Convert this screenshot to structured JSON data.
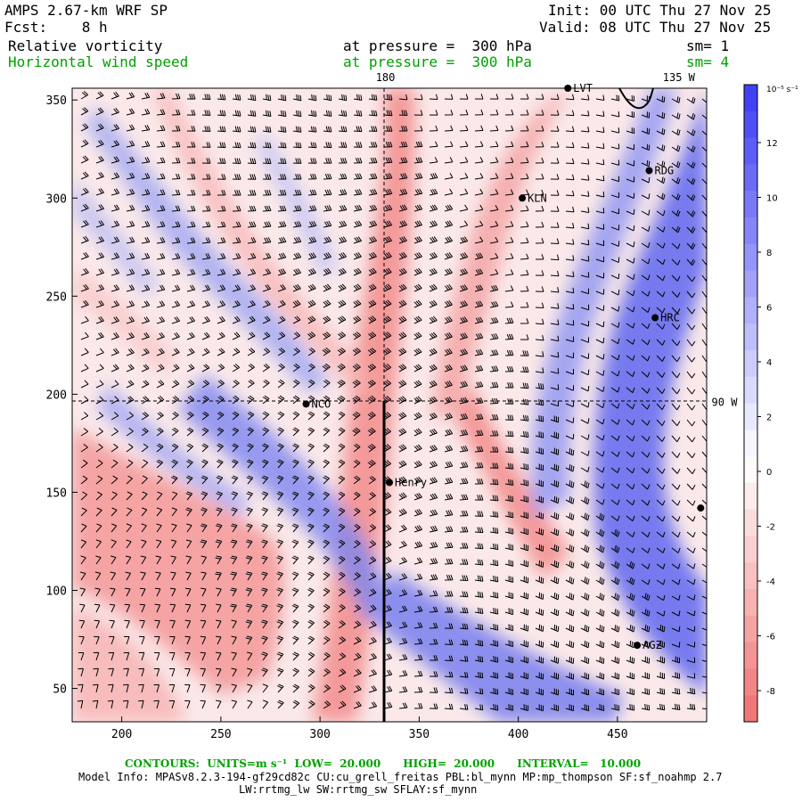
{
  "header": {
    "model": "AMPS 2.67-km WRF SP",
    "fcst": "Fcst:    8 h",
    "init": "Init: 00 UTC Thu 27 Nov 25",
    "valid": "Valid: 08 UTC Thu 27 Nov 25",
    "field1": "Relative vorticity",
    "field1_level": "at pressure =  300 hPa",
    "field1_sm": "sm= 1",
    "field2": "Horizontal wind speed",
    "field2_level": "at pressure =  300 hPa",
    "field2_sm": "sm= 4"
  },
  "axes": {
    "x_ticks": [
      200,
      250,
      300,
      350,
      400,
      450
    ],
    "y_ticks": [
      50,
      100,
      150,
      200,
      250,
      300,
      350
    ],
    "x_range": [
      175,
      495
    ],
    "y_range": [
      33,
      356
    ],
    "lon_labels": [
      {
        "text": "180",
        "x": 333,
        "y": 356
      },
      {
        "text": "135 W",
        "x": 481,
        "y": 356
      },
      {
        "text": "90 W",
        "x": 495,
        "y": 195
      }
    ]
  },
  "colorbar": {
    "unit_label": "10⁻⁵ s⁻¹",
    "ticks": [
      "12",
      "10",
      "8",
      "6",
      "4",
      "2",
      "0",
      "-2",
      "-4",
      "-6",
      "-8"
    ],
    "positive_color": "#3a3af5",
    "negative_color": "#f07070"
  },
  "stations": [
    {
      "name": "LVT",
      "x": 425,
      "y": 356
    },
    {
      "name": "RDG",
      "x": 466,
      "y": 314
    },
    {
      "name": "KLN",
      "x": 402,
      "y": 300
    },
    {
      "name": "HRC",
      "x": 469,
      "y": 239
    },
    {
      "name": "NCO",
      "x": 293,
      "y": 195
    },
    {
      "name": "Henry",
      "x": 335,
      "y": 155
    },
    {
      "name": "",
      "x": 492,
      "y": 142
    },
    {
      "name": "AGZ",
      "x": 460,
      "y": 72
    }
  ],
  "footer": {
    "contours": "CONTOURS:  UNITS=m s⁻¹  LOW=  20.000      HIGH=  20.000      INTERVAL=   10.000",
    "model_info": "Model Info: MPASv8.2.3-194-gf29cd82c CU:cu_grell_freitas PBL:bl_mynn MP:mp_thompson SF:sf_noahmp 2.7",
    "model_info2": "LW:rrtmg_lw SW:rrtmg_sw SFLAY:sf_mynn"
  }
}
